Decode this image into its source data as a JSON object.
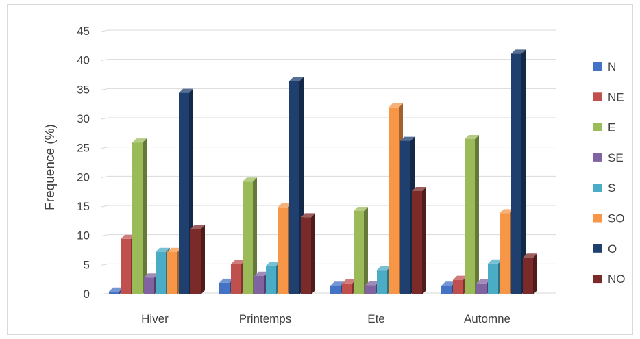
{
  "chart_data": {
    "type": "bar",
    "title": "",
    "xlabel": "",
    "ylabel": "Frequence (%)",
    "ylim": [
      0,
      45
    ],
    "yticks": [
      0,
      5,
      10,
      15,
      20,
      25,
      30,
      35,
      40,
      45
    ],
    "grid": true,
    "legend_position": "right",
    "categories": [
      "Hiver",
      "Printemps",
      "Ete",
      "Automne"
    ],
    "series": [
      {
        "name": "N",
        "color": "#4472C4",
        "values": [
          0.5,
          2.0,
          1.5,
          1.5
        ]
      },
      {
        "name": "NE",
        "color": "#C0504D",
        "values": [
          9.5,
          5.2,
          1.9,
          2.5
        ]
      },
      {
        "name": "E",
        "color": "#9BBB59",
        "values": [
          26.0,
          19.3,
          14.3,
          26.6
        ]
      },
      {
        "name": "SE",
        "color": "#8064A2",
        "values": [
          2.9,
          3.2,
          1.6,
          1.9
        ]
      },
      {
        "name": "S",
        "color": "#4BACC6",
        "values": [
          7.3,
          4.9,
          4.2,
          5.3
        ]
      },
      {
        "name": "SO",
        "color": "#F79646",
        "values": [
          7.3,
          14.9,
          32.0,
          13.9
        ]
      },
      {
        "name": "O",
        "color": "#1F3F6E",
        "values": [
          34.5,
          36.5,
          26.3,
          41.2
        ]
      },
      {
        "name": "NO",
        "color": "#7B2A2A",
        "values": [
          11.2,
          13.2,
          17.7,
          6.3
        ]
      }
    ]
  }
}
